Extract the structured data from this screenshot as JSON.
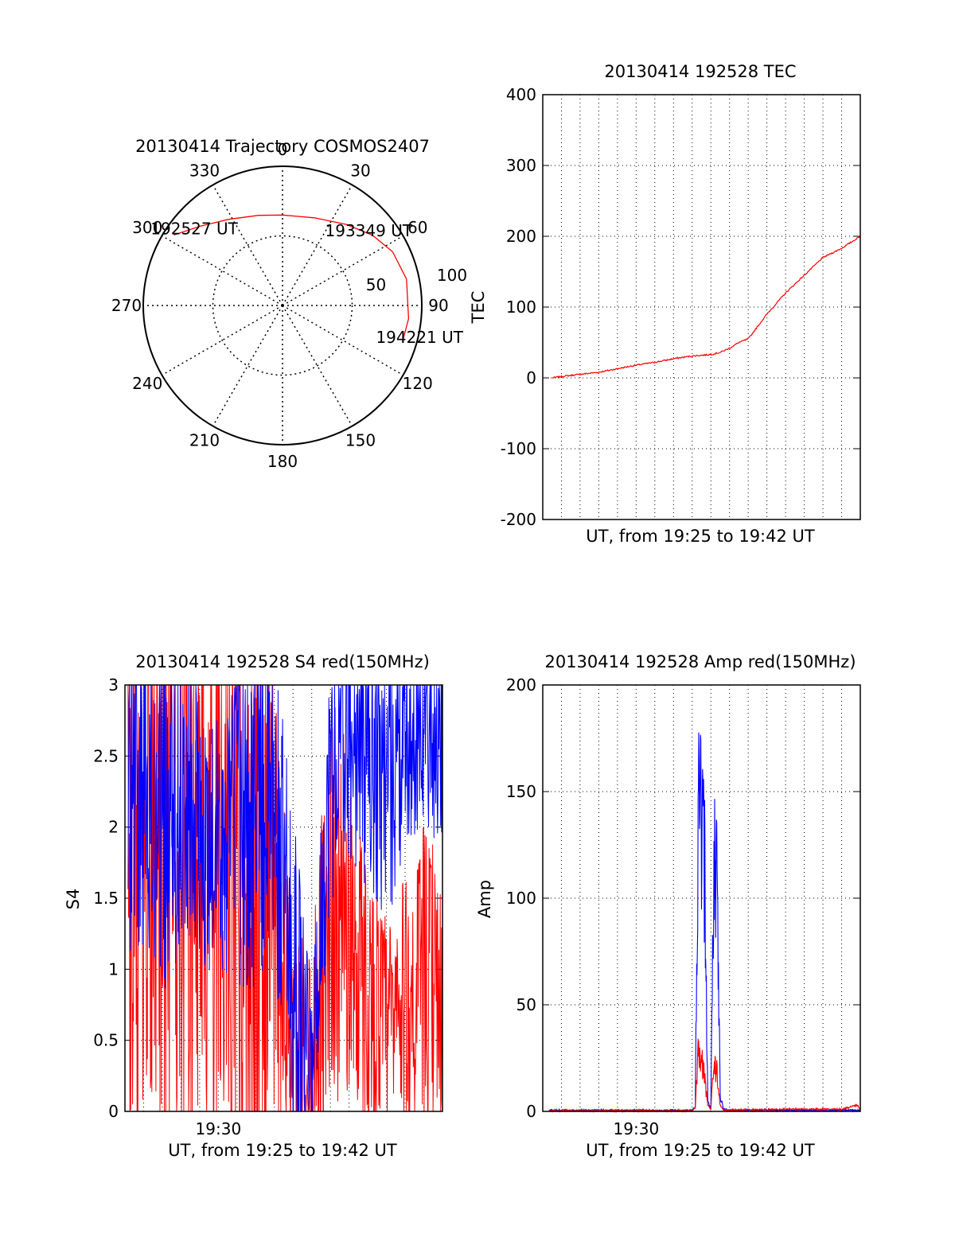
{
  "colors": {
    "red": "#ff0000",
    "blue": "#0000ff",
    "black": "#000000",
    "background": "#ffffff"
  },
  "chart_data": [
    {
      "id": "trajectory",
      "type": "polar",
      "title": "20130414 Trajectory COSMOS2407",
      "azimuth_labels": [
        "0",
        "30",
        "60",
        "90",
        "120",
        "150",
        "180",
        "210",
        "240",
        "270",
        "300",
        "330"
      ],
      "radial_labels": [
        "50",
        "100"
      ],
      "radial_max": 100,
      "grid": true,
      "track": [
        {
          "az": 303,
          "r": 93
        },
        {
          "az": 314,
          "r": 82
        },
        {
          "az": 328,
          "r": 73
        },
        {
          "az": 345,
          "r": 67
        },
        {
          "az": 0,
          "r": 65
        },
        {
          "az": 20,
          "r": 67
        },
        {
          "az": 38,
          "r": 74
        },
        {
          "az": 52,
          "r": 82
        },
        {
          "az": 64,
          "r": 88
        },
        {
          "az": 78,
          "r": 91
        },
        {
          "az": 96,
          "r": 91
        },
        {
          "az": 107,
          "r": 90
        }
      ],
      "time_labels": [
        {
          "text": "192527 UT",
          "az": 311,
          "r": 84
        },
        {
          "text": "193349 UT",
          "az": 49,
          "r": 82
        },
        {
          "text": "194221 UT",
          "az": 103,
          "r": 101
        }
      ]
    },
    {
      "id": "tec",
      "type": "line",
      "title": "20130414 192528 TEC",
      "xlabel": "UT, from 19:25 to 19:42 UT",
      "ylabel": "TEC",
      "xlim": [
        "19:25",
        "19:42"
      ],
      "ylim": [
        -200,
        400
      ],
      "yticks": [
        -200,
        -100,
        0,
        100,
        200,
        300,
        400
      ],
      "grid": true,
      "series": [
        {
          "color": "#ff0000",
          "x": [
            "19:25:30",
            "19:26:00",
            "19:27:00",
            "19:28:00",
            "19:29:00",
            "19:30:00",
            "19:31:00",
            "19:32:00",
            "19:33:00",
            "19:34:00",
            "19:34:30",
            "19:35:00",
            "19:35:30",
            "19:36:00",
            "19:37:00",
            "19:38:00",
            "19:39:00",
            "19:40:00",
            "19:41:00",
            "19:42:00"
          ],
          "values": [
            0,
            2,
            5,
            8,
            13,
            18,
            22,
            27,
            31,
            33,
            36,
            42,
            50,
            55,
            90,
            120,
            145,
            170,
            183,
            200
          ]
        }
      ]
    },
    {
      "id": "s4",
      "type": "line",
      "title": "20130414 192528 S4 red(150MHz)",
      "xlabel": "UT, from 19:25 to 19:42 UT",
      "ylabel": "S4",
      "xlim": [
        "19:25",
        "19:42"
      ],
      "ylim": [
        0,
        3
      ],
      "yticks": [
        "0",
        "0.5",
        "1",
        "1.5",
        "2",
        "2.5",
        "3"
      ],
      "xticks": [
        "19:30"
      ],
      "grid": true,
      "series": [
        {
          "color": "#ff0000",
          "x": [
            "19:25",
            "19:26",
            "19:27",
            "19:28",
            "19:29",
            "19:30",
            "19:31",
            "19:32",
            "19:33",
            "19:34",
            "19:35",
            "19:36",
            "19:37",
            "19:38",
            "19:39",
            "19:40",
            "19:41",
            "19:42"
          ],
          "values": [
            1.5,
            1.7,
            1.8,
            1.6,
            1.8,
            1.7,
            1.6,
            1.4,
            1.3,
            0.5,
            0.4,
            1.5,
            1.3,
            0.8,
            0.6,
            0.7,
            0.9,
            0.7
          ],
          "spread": [
            1.4,
            1.3,
            1.2,
            1.4,
            1.2,
            1.2,
            1.3,
            1.4,
            1.1,
            0.5,
            0.6,
            0.9,
            0.8,
            0.6,
            0.5,
            0.6,
            0.7,
            0.7
          ]
        },
        {
          "color": "#0000ff",
          "x": [
            "19:25",
            "19:26",
            "19:27",
            "19:28",
            "19:29",
            "19:30",
            "19:31",
            "19:32",
            "19:33",
            "19:34",
            "19:35",
            "19:36",
            "19:37",
            "19:38",
            "19:39",
            "19:40",
            "19:41",
            "19:42"
          ],
          "values": [
            2.2,
            2.3,
            2.0,
            2.2,
            2.0,
            1.9,
            2.0,
            2.1,
            2.1,
            0.9,
            0.3,
            2.4,
            2.6,
            2.5,
            2.4,
            2.6,
            2.7,
            2.6
          ],
          "spread": [
            0.8,
            0.7,
            0.8,
            0.7,
            0.6,
            0.6,
            0.7,
            0.8,
            0.7,
            0.8,
            0.3,
            0.6,
            0.5,
            0.6,
            0.7,
            0.5,
            0.4,
            0.5
          ]
        }
      ]
    },
    {
      "id": "amp",
      "type": "line",
      "title": "20130414 192528 Amp red(150MHz)",
      "xlabel": "UT, from 19:25 to 19:42 UT",
      "ylabel": "Amp",
      "xlim": [
        "19:25",
        "19:42"
      ],
      "ylim": [
        0,
        200
      ],
      "yticks": [
        0,
        50,
        100,
        150,
        200
      ],
      "xticks": [
        "19:30"
      ],
      "grid": true,
      "series": [
        {
          "color": "#0000ff",
          "x": [
            "19:25:20",
            "19:33:00",
            "19:33:10",
            "19:33:20",
            "19:33:30",
            "19:33:40",
            "19:33:50",
            "19:34:00",
            "19:34:10",
            "19:34:20",
            "19:34:30",
            "19:34:40",
            "19:35:00",
            "19:42:00"
          ],
          "values": [
            0.5,
            0.5,
            2,
            185,
            170,
            140,
            5,
            1,
            158,
            140,
            10,
            1,
            0.5,
            0.5
          ]
        },
        {
          "color": "#ff0000",
          "x": [
            "19:25:20",
            "19:33:00",
            "19:33:10",
            "19:33:20",
            "19:33:30",
            "19:33:40",
            "19:33:50",
            "19:34:00",
            "19:34:10",
            "19:34:20",
            "19:34:30",
            "19:34:40",
            "19:38:00",
            "19:41:00",
            "19:41:50",
            "19:42:00"
          ],
          "values": [
            0.3,
            0.3,
            2,
            38,
            30,
            20,
            3,
            1,
            28,
            22,
            3,
            0.5,
            1,
            1,
            3,
            1
          ]
        }
      ]
    }
  ]
}
